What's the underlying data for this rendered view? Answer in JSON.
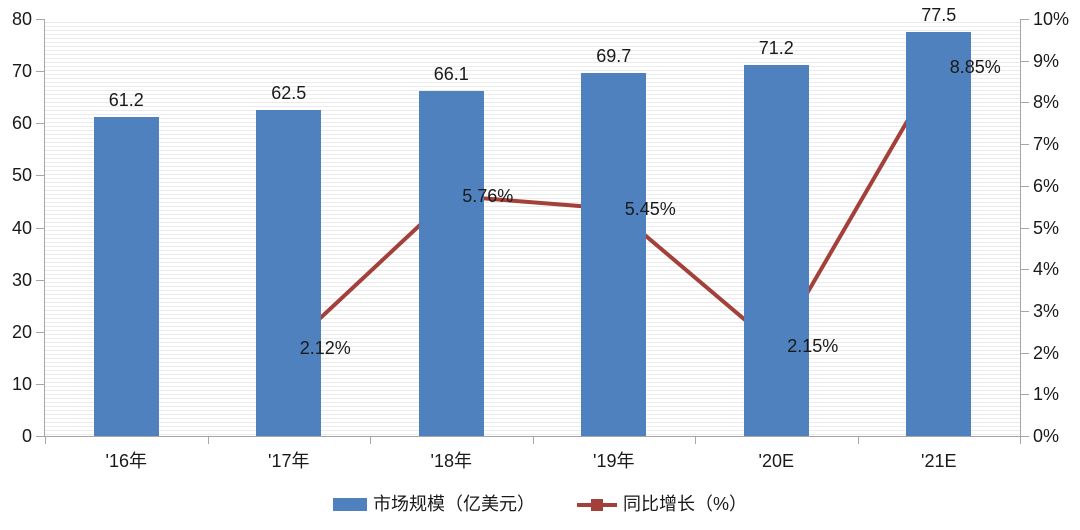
{
  "chart_data": {
    "type": "combo-bar-line",
    "title": "",
    "categories": [
      "'16年",
      "'17年",
      "'18年",
      "'19年",
      "'20E",
      "'21E"
    ],
    "series": [
      {
        "name": "市场规模（亿美元）",
        "type": "bar",
        "axis": "left",
        "color": "#4E81BD",
        "values": [
          61.2,
          62.5,
          66.1,
          69.7,
          71.2,
          77.5
        ],
        "data_labels": [
          "61.2",
          "62.5",
          "66.1",
          "69.7",
          "71.2",
          "77.5"
        ]
      },
      {
        "name": "同比增长（%）",
        "type": "line",
        "axis": "right",
        "color": "#A4403A",
        "marker": "square",
        "values": [
          null,
          2.12,
          5.76,
          5.45,
          2.15,
          8.85
        ],
        "data_labels": [
          null,
          "2.12%",
          "5.76%",
          "5.45%",
          "2.15%",
          "8.85%"
        ]
      }
    ],
    "left_axis": {
      "min": 0,
      "max": 80,
      "step": 10,
      "tick_labels": [
        "80",
        "70",
        "60",
        "50",
        "40",
        "30",
        "20",
        "10",
        "0"
      ]
    },
    "right_axis": {
      "min": 0,
      "max": 10,
      "step": 1,
      "tick_labels": [
        "10%",
        "9%",
        "8%",
        "7%",
        "6%",
        "5%",
        "4%",
        "3%",
        "2%",
        "1%",
        "0%"
      ]
    },
    "legend_position": "bottom",
    "grid": "fine-horizontal-stripes",
    "colors": {
      "bar": "#4E81BD",
      "line": "#A4403A",
      "axis_line": "#A6A6A6",
      "text": "#1A1A1A",
      "stripe": "#EBEBEB",
      "background": "#FFFFFF"
    }
  }
}
